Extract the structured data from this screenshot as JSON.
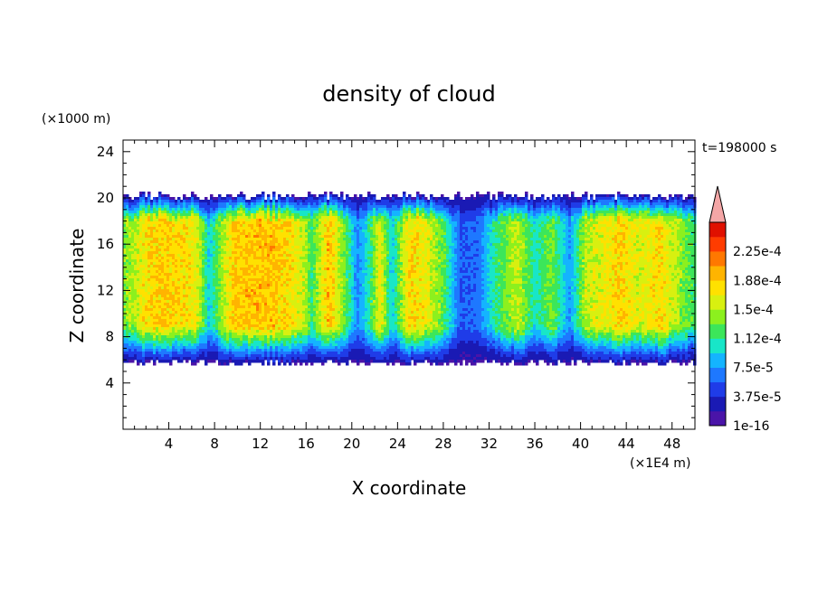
{
  "chart_data": {
    "type": "heatmap",
    "title": "density of cloud",
    "xlabel": "X coordinate",
    "ylabel": "Z coordinate",
    "x_unit": "(×1E4 m)",
    "y_unit": "(×1000 m)",
    "time_label": "t=198000 s",
    "xlim": [
      0,
      50
    ],
    "ylim": [
      0,
      25
    ],
    "x_ticks": [
      4,
      8,
      12,
      16,
      20,
      24,
      28,
      32,
      36,
      40,
      44,
      48
    ],
    "y_ticks": [
      4,
      8,
      12,
      16,
      20,
      24
    ],
    "colorbar": {
      "levels": [
        1e-16,
        1.875e-05,
        3.75e-05,
        5.625e-05,
        7.5e-05,
        9.375e-05,
        0.0001125,
        0.00013125,
        0.00015,
        0.00016875,
        0.0001875,
        0.00020625,
        0.000225,
        0.00024375
      ],
      "tick_labels": [
        "1e-16",
        "3.75e-5",
        "7.5e-5",
        "1.12e-4",
        "1.5e-4",
        "1.88e-4",
        "2.25e-4"
      ],
      "colors": [
        "#4a14a8",
        "#1a1ab4",
        "#1f3ce8",
        "#1e78ff",
        "#14b4ff",
        "#18e6c8",
        "#3ce65a",
        "#8cf01e",
        "#d8f010",
        "#ffe100",
        "#ffb400",
        "#ff7800",
        "#ff3c00",
        "#e01000"
      ],
      "overflow_color": "#f4a6a6"
    },
    "field": {
      "cloud_base_z": 5.8,
      "cloud_top_z": 20.2,
      "columns": [
        {
          "x": 0.0,
          "peak": 0.00014
        },
        {
          "x": 1.0,
          "peak": 0.000155
        },
        {
          "x": 2.0,
          "peak": 0.000185
        },
        {
          "x": 3.5,
          "peak": 0.000192
        },
        {
          "x": 5.0,
          "peak": 0.000188
        },
        {
          "x": 6.5,
          "peak": 0.00017
        },
        {
          "x": 7.5,
          "peak": 9.5e-05
        },
        {
          "x": 8.3,
          "peak": 0.00013
        },
        {
          "x": 9.5,
          "peak": 0.000188
        },
        {
          "x": 11.0,
          "peak": 0.000195
        },
        {
          "x": 13.0,
          "peak": 0.000195
        },
        {
          "x": 14.5,
          "peak": 0.000185
        },
        {
          "x": 15.8,
          "peak": 0.00016
        },
        {
          "x": 16.5,
          "peak": 0.00012
        },
        {
          "x": 18.0,
          "peak": 0.0002
        },
        {
          "x": 19.3,
          "peak": 0.00014
        },
        {
          "x": 20.5,
          "peak": 7e-05
        },
        {
          "x": 21.5,
          "peak": 0.00011
        },
        {
          "x": 22.5,
          "peak": 0.000175
        },
        {
          "x": 23.5,
          "peak": 9.5e-05
        },
        {
          "x": 25.0,
          "peak": 0.000185
        },
        {
          "x": 26.5,
          "peak": 0.000175
        },
        {
          "x": 28.0,
          "peak": 0.00013
        },
        {
          "x": 29.5,
          "peak": 5.5e-05
        },
        {
          "x": 31.0,
          "peak": 6e-05
        },
        {
          "x": 32.5,
          "peak": 0.000115
        },
        {
          "x": 34.5,
          "peak": 0.00016
        },
        {
          "x": 36.0,
          "peak": 0.000105
        },
        {
          "x": 37.5,
          "peak": 0.00014
        },
        {
          "x": 39.0,
          "peak": 7.5e-05
        },
        {
          "x": 40.5,
          "peak": 0.00016
        },
        {
          "x": 42.0,
          "peak": 0.00017
        },
        {
          "x": 43.5,
          "peak": 0.00019
        },
        {
          "x": 45.0,
          "peak": 0.000165
        },
        {
          "x": 47.0,
          "peak": 0.000185
        },
        {
          "x": 49.0,
          "peak": 0.00014
        },
        {
          "x": 50.0,
          "peak": 0.00012
        }
      ]
    }
  }
}
